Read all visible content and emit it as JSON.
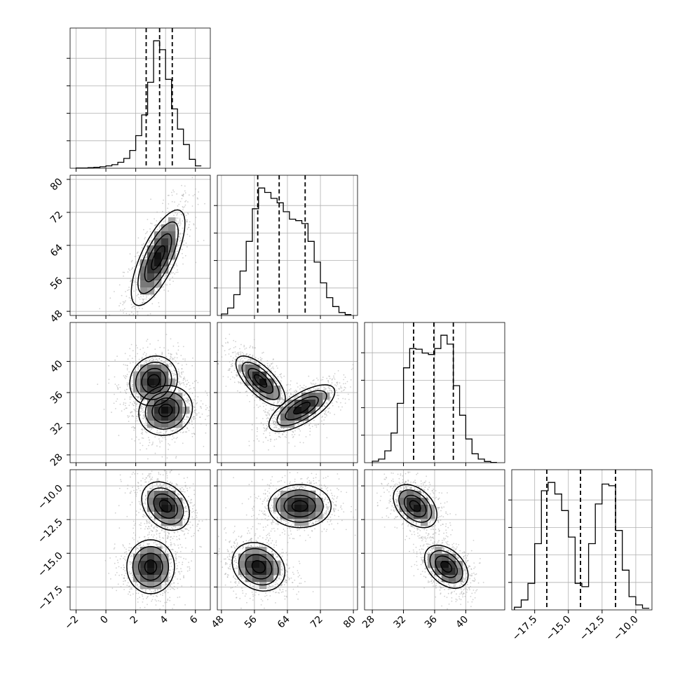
{
  "chart_data": {
    "type": "corner",
    "grid": true,
    "quantile_lines": "dashed",
    "parameters": [
      {
        "range": [
          -2.4,
          7.0
        ],
        "ticks": [
          -2,
          0,
          2,
          4,
          6
        ],
        "tick_labels": [
          "−2",
          "0",
          "2",
          "4",
          "6"
        ],
        "quantiles": [
          2.7,
          3.6,
          4.45
        ],
        "hist_bins": [
          -2.0,
          -1.6,
          -1.2,
          -0.8,
          -0.4,
          0.0,
          0.4,
          0.8,
          1.2,
          1.6,
          2.0,
          2.4,
          2.8,
          3.2,
          3.6,
          4.0,
          4.4,
          4.8,
          5.2,
          5.6,
          6.0,
          6.4
        ],
        "hist_counts": [
          1,
          1,
          2,
          3,
          5,
          8,
          12,
          20,
          33,
          60,
          110,
          180,
          290,
          430,
          400,
          300,
          200,
          132,
          80,
          30,
          8
        ]
      },
      {
        "range": [
          47,
          81
        ],
        "ticks": [
          48,
          56,
          64,
          72,
          80
        ],
        "tick_labels": [
          "48",
          "56",
          "64",
          "72",
          "80"
        ],
        "quantiles": [
          56.8,
          62.0,
          68.3
        ],
        "hist_bins": [
          48,
          49.5,
          51,
          52.5,
          54,
          55.5,
          57,
          58.5,
          60,
          61.5,
          63,
          64.5,
          66,
          67.5,
          69,
          70.5,
          72,
          73.5,
          75,
          76.5,
          78,
          79.5
        ],
        "hist_counts": [
          5,
          25,
          70,
          150,
          250,
          360,
          430,
          415,
          395,
          380,
          350,
          325,
          320,
          310,
          250,
          180,
          110,
          60,
          30,
          10,
          3
        ]
      },
      {
        "range": [
          27,
          45
        ],
        "ticks": [
          28,
          32,
          36,
          40
        ],
        "tick_labels": [
          "28",
          "32",
          "36",
          "40"
        ],
        "quantiles": [
          33.3,
          35.9,
          38.4
        ],
        "hist_bins": [
          28,
          28.8,
          29.6,
          30.4,
          31.2,
          32.0,
          32.8,
          33.6,
          34.4,
          35.2,
          36.0,
          36.8,
          37.6,
          38.4,
          39.2,
          40.0,
          40.8,
          41.6,
          42.4,
          43.2,
          44.0
        ],
        "hist_counts": [
          5,
          12,
          40,
          100,
          200,
          320,
          385,
          383,
          370,
          365,
          385,
          430,
          400,
          260,
          160,
          80,
          30,
          12,
          4,
          1
        ]
      },
      {
        "range": [
          -19.2,
          -8.8
        ],
        "ticks": [
          -17.5,
          -15.0,
          -12.5,
          -10.0
        ],
        "tick_labels": [
          "−17.5",
          "−15.0",
          "−12.5",
          "−10.0"
        ],
        "quantiles": [
          -16.6,
          -14.1,
          -11.5
        ],
        "hist_bins": [
          -19.0,
          -18.5,
          -18.0,
          -17.5,
          -17.0,
          -16.5,
          -16.0,
          -15.5,
          -15.0,
          -14.5,
          -14.0,
          -13.5,
          -13.0,
          -12.5,
          -12.0,
          -11.5,
          -11.0,
          -10.5,
          -10.0,
          -9.5,
          -9.0
        ],
        "hist_counts": [
          8,
          30,
          80,
          200,
          360,
          385,
          350,
          300,
          220,
          80,
          70,
          200,
          320,
          380,
          375,
          240,
          120,
          40,
          15,
          5
        ]
      }
    ],
    "pairs": [
      {
        "row": 1,
        "col": 0,
        "modes": [
          {
            "mean": [
              3.5,
              61.0
            ],
            "sd": [
              0.9,
              5.8
            ],
            "rho": 0.72
          }
        ]
      },
      {
        "row": 2,
        "col": 0,
        "modes": [
          {
            "mean": [
              3.2,
              37.5
            ],
            "sd": [
              0.8,
              1.6
            ],
            "rho": 0.1
          },
          {
            "mean": [
              4.0,
              33.7
            ],
            "sd": [
              0.9,
              1.6
            ],
            "rho": 0.1
          }
        ]
      },
      {
        "row": 2,
        "col": 1,
        "modes": [
          {
            "mean": [
              57.5,
              37.5
            ],
            "sd": [
              3.0,
              1.6
            ],
            "rho": -0.7
          },
          {
            "mean": [
              67.5,
              34.0
            ],
            "sd": [
              4.0,
              1.5
            ],
            "rho": 0.7
          }
        ]
      },
      {
        "row": 3,
        "col": 0,
        "modes": [
          {
            "mean": [
              4.0,
              -11.5
            ],
            "sd": [
              0.8,
              0.9
            ],
            "rho": -0.3
          },
          {
            "mean": [
              3.0,
              -16.0
            ],
            "sd": [
              0.8,
              1.0
            ],
            "rho": 0.0
          }
        ]
      },
      {
        "row": 3,
        "col": 1,
        "modes": [
          {
            "mean": [
              67.0,
              -11.5
            ],
            "sd": [
              3.8,
              0.8
            ],
            "rho": 0.0
          },
          {
            "mean": [
              57.0,
              -16.0
            ],
            "sd": [
              3.2,
              0.9
            ],
            "rho": -0.2
          }
        ]
      },
      {
        "row": 3,
        "col": 2,
        "modes": [
          {
            "mean": [
              33.5,
              -11.5
            ],
            "sd": [
              1.4,
              0.8
            ],
            "rho": -0.4
          },
          {
            "mean": [
              37.5,
              -16.0
            ],
            "sd": [
              1.4,
              0.8
            ],
            "rho": -0.4
          }
        ]
      }
    ]
  }
}
